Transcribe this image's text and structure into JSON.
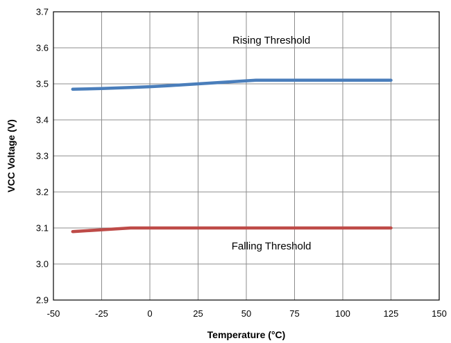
{
  "chart_data": {
    "type": "line",
    "xlabel": "Temperature (°C)",
    "ylabel": "VCC Voltage (V)",
    "xlim": [
      -50,
      150
    ],
    "ylim": [
      2.9,
      3.7
    ],
    "xticks": [
      -50,
      -25,
      0,
      25,
      50,
      75,
      100,
      125,
      150
    ],
    "xtick_labels": [
      "-50",
      "-25",
      "0",
      "25",
      "50",
      "75",
      "100",
      "125",
      "150"
    ],
    "yticks": [
      2.9,
      3.0,
      3.1,
      3.2,
      3.3,
      3.4,
      3.5,
      3.6,
      3.7
    ],
    "ytick_labels": [
      "2.9",
      "3.0",
      "3.1",
      "3.2",
      "3.3",
      "3.4",
      "3.5",
      "3.6",
      "3.7"
    ],
    "grid": true,
    "legend": "none",
    "series": [
      {
        "color": "#4a7ebb",
        "x": [
          -40,
          -25,
          -10,
          0,
          10,
          25,
          40,
          55,
          75,
          100,
          125
        ],
        "y": [
          3.485,
          3.487,
          3.49,
          3.492,
          3.495,
          3.5,
          3.505,
          3.51,
          3.51,
          3.51,
          3.51
        ]
      },
      {
        "color": "#be4b48",
        "x": [
          -40,
          -25,
          -10,
          0,
          25,
          50,
          75,
          100,
          125
        ],
        "y": [
          3.09,
          3.095,
          3.1,
          3.1,
          3.1,
          3.1,
          3.1,
          3.1,
          3.1
        ]
      }
    ],
    "annotations": [
      {
        "text": "Rising Threshold",
        "x": 63,
        "y": 3.612
      },
      {
        "text": "Falling Threshold",
        "x": 63,
        "y": 3.04
      }
    ]
  }
}
